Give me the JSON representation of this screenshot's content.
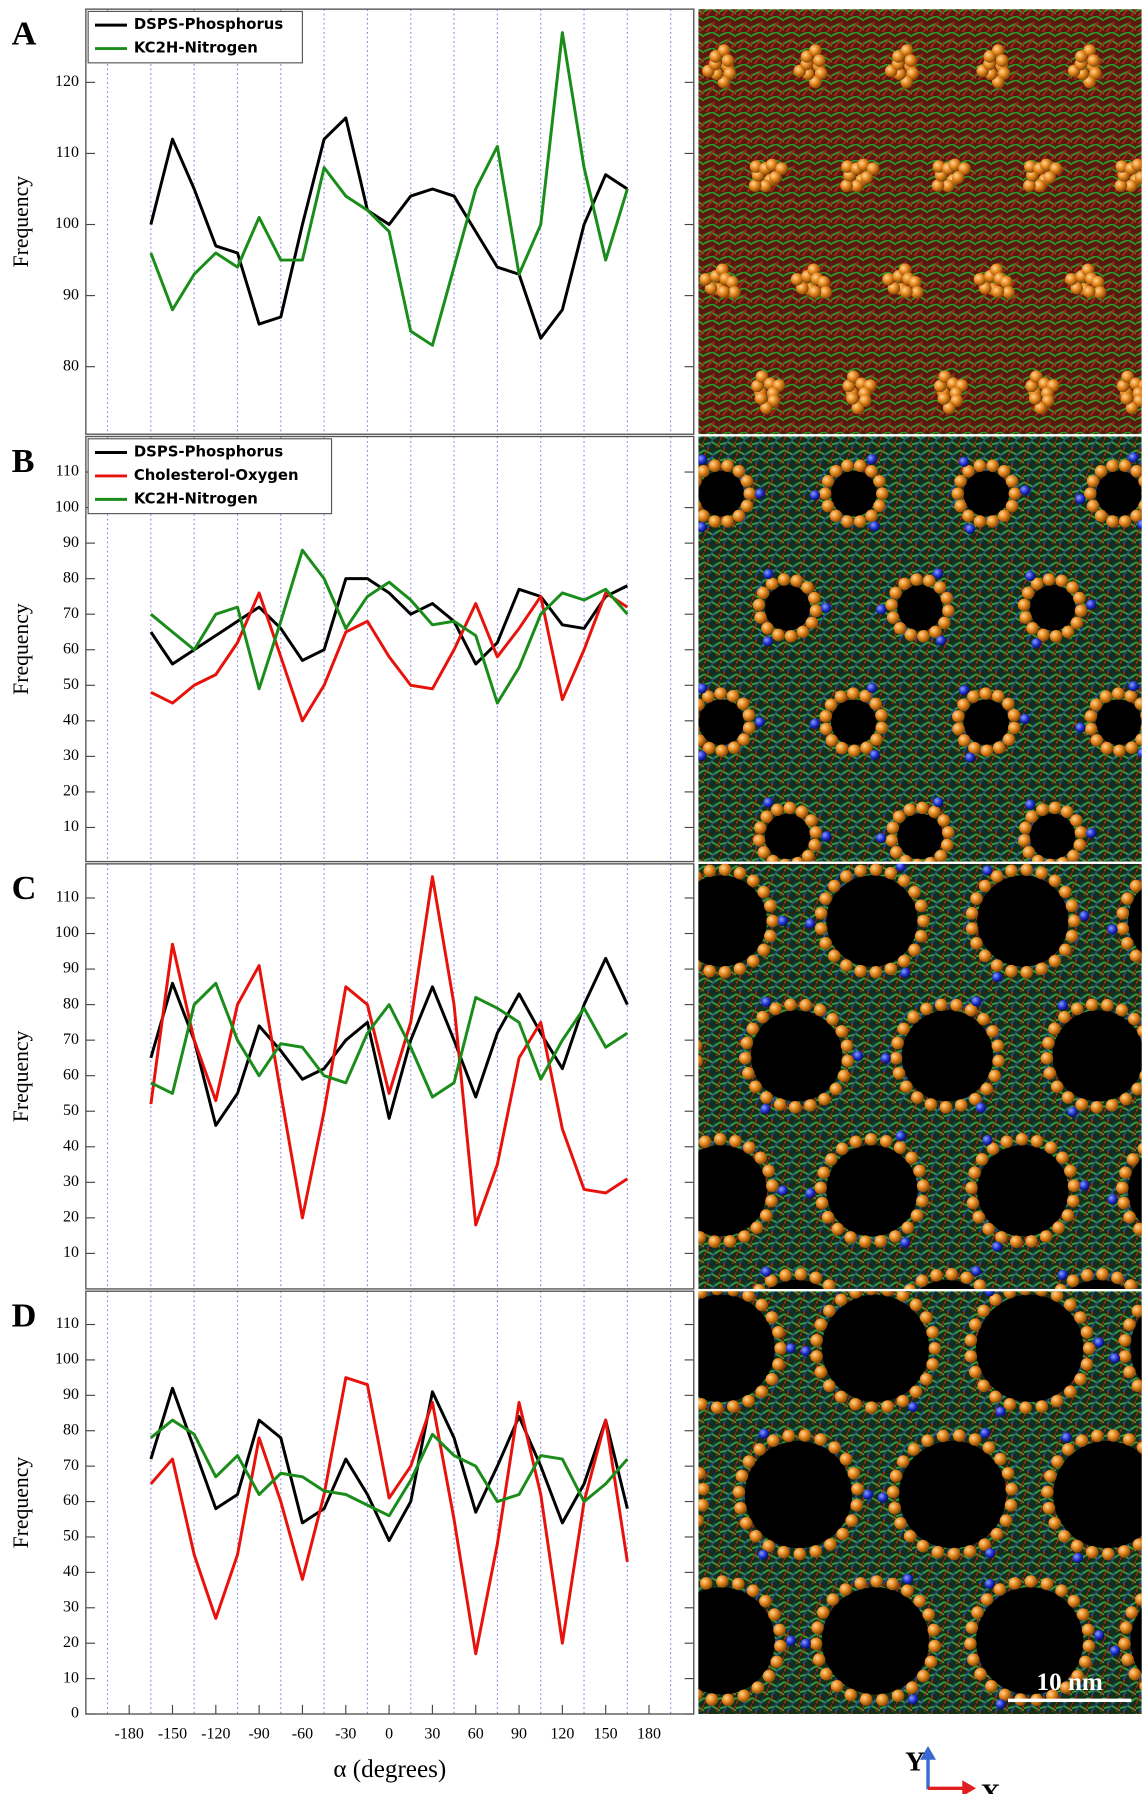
{
  "chart_data": [
    {
      "type": "line",
      "panel_label": "A",
      "ylabel": "Frequency",
      "legend": "upper left",
      "grid": true,
      "x": [
        -165,
        -150,
        -135,
        -120,
        -105,
        -90,
        -75,
        -60,
        -45,
        -30,
        -15,
        0,
        15,
        30,
        45,
        60,
        75,
        90,
        105,
        120,
        135,
        150,
        165
      ],
      "xlim": [
        -210,
        211
      ],
      "ylim": [
        70.5,
        130.3
      ],
      "yticks": [
        80,
        90,
        100,
        110,
        120
      ],
      "xgrid": [
        -195,
        -165,
        -135,
        -105,
        -75,
        -45,
        -15,
        15,
        45,
        75,
        105,
        135,
        165,
        195
      ],
      "series": [
        {
          "name": "DSPS-Phosphorus",
          "color": "#000000",
          "values": [
            100,
            112,
            105,
            97,
            96,
            86,
            87,
            100,
            112,
            115,
            102,
            100,
            104,
            105,
            104,
            99,
            94,
            93,
            84,
            88,
            100,
            107,
            105
          ]
        },
        {
          "name": "KC2H-Nitrogen",
          "color": "#1a8c1a",
          "values": [
            96,
            88,
            93,
            96,
            94,
            101,
            95,
            95,
            108,
            104,
            102,
            99,
            85,
            83,
            94,
            105,
            111,
            93,
            100,
            127,
            108,
            95,
            105
          ]
        }
      ]
    },
    {
      "type": "line",
      "panel_label": "B",
      "ylabel": "Frequency",
      "legend": "upper left",
      "grid": true,
      "x": [
        -165,
        -150,
        -135,
        -120,
        -105,
        -90,
        -75,
        -60,
        -45,
        -30,
        -15,
        0,
        15,
        30,
        45,
        60,
        75,
        90,
        105,
        120,
        135,
        150,
        165
      ],
      "xlim": [
        -210,
        211
      ],
      "ylim": [
        0.4,
        120
      ],
      "yticks": [
        10,
        20,
        30,
        40,
        50,
        60,
        70,
        80,
        90,
        100,
        110
      ],
      "xgrid": [
        -195,
        -165,
        -135,
        -105,
        -75,
        -45,
        -15,
        15,
        45,
        75,
        105,
        135,
        165,
        195
      ],
      "series": [
        {
          "name": "DSPS-Phosphorus",
          "color": "#000000",
          "values": [
            65,
            56,
            60,
            64,
            68,
            72,
            66,
            57,
            60,
            80,
            80,
            76,
            70,
            73,
            68,
            56,
            62,
            77,
            75,
            67,
            66,
            75,
            78
          ]
        },
        {
          "name": "Cholesterol-Oxygen",
          "color": "#e8120c",
          "values": [
            48,
            45,
            50,
            53,
            62,
            76,
            58,
            40,
            50,
            65,
            68,
            58,
            50,
            49,
            60,
            73,
            58,
            66,
            75,
            46,
            60,
            76,
            72
          ]
        },
        {
          "name": "KC2H-Nitrogen",
          "color": "#1a8c1a",
          "values": [
            70,
            65,
            60,
            70,
            72,
            49,
            68,
            88,
            80,
            66,
            75,
            79,
            74,
            67,
            68,
            64,
            45,
            55,
            70,
            76,
            74,
            77,
            70
          ]
        }
      ]
    },
    {
      "type": "line",
      "panel_label": "C",
      "ylabel": "Frequency",
      "grid": true,
      "x": [
        -165,
        -150,
        -135,
        -120,
        -105,
        -90,
        -75,
        -60,
        -45,
        -30,
        -15,
        0,
        15,
        30,
        45,
        60,
        75,
        90,
        105,
        120,
        135,
        150,
        165
      ],
      "xlim": [
        -210,
        211
      ],
      "ylim": [
        0,
        119.6
      ],
      "yticks": [
        10,
        20,
        30,
        40,
        50,
        60,
        70,
        80,
        90,
        100,
        110
      ],
      "xgrid": [
        -195,
        -165,
        -135,
        -105,
        -75,
        -45,
        -15,
        15,
        45,
        75,
        105,
        135,
        165,
        195
      ],
      "series": [
        {
          "color": "#000000",
          "values": [
            65,
            86,
            70,
            46,
            55,
            74,
            67,
            59,
            62,
            70,
            75,
            48,
            70,
            85,
            70,
            54,
            72,
            83,
            72,
            62,
            80,
            93,
            80
          ]
        },
        {
          "color": "#e8120c",
          "values": [
            52,
            97,
            70,
            53,
            80,
            91,
            55,
            20,
            50,
            85,
            80,
            55,
            75,
            116,
            80,
            18,
            35,
            65,
            75,
            45,
            28,
            27,
            31
          ]
        },
        {
          "color": "#1a8c1a",
          "values": [
            58,
            55,
            80,
            86,
            70,
            60,
            69,
            68,
            60,
            58,
            72,
            80,
            68,
            54,
            58,
            82,
            79,
            75,
            59,
            70,
            79,
            68,
            72
          ]
        }
      ]
    },
    {
      "type": "line",
      "panel_label": "D",
      "ylabel": "Frequency",
      "xlabel": "α (degrees)",
      "grid": true,
      "x": [
        -165,
        -150,
        -135,
        -120,
        -105,
        -90,
        -75,
        -60,
        -45,
        -30,
        -15,
        0,
        15,
        30,
        45,
        60,
        75,
        90,
        105,
        120,
        135,
        150,
        165
      ],
      "xlim": [
        -210,
        211
      ],
      "ylim": [
        0,
        119.4
      ],
      "yticks": [
        0,
        10,
        20,
        30,
        40,
        50,
        60,
        70,
        80,
        90,
        100,
        110
      ],
      "xticks": [
        -180,
        -150,
        -120,
        -90,
        -60,
        -30,
        0,
        30,
        60,
        90,
        120,
        150,
        180
      ],
      "xgrid": [
        -195,
        -165,
        -135,
        -105,
        -75,
        -45,
        -15,
        15,
        45,
        75,
        105,
        135,
        165,
        195
      ],
      "series": [
        {
          "color": "#000000",
          "values": [
            72,
            92,
            75,
            58,
            62,
            83,
            78,
            54,
            58,
            72,
            62,
            49,
            60,
            91,
            78,
            57,
            70,
            84,
            70,
            54,
            65,
            83,
            58
          ]
        },
        {
          "color": "#e8120c",
          "values": [
            65,
            72,
            45,
            27,
            45,
            78,
            60,
            38,
            62,
            95,
            93,
            61,
            70,
            88,
            55,
            17,
            48,
            88,
            62,
            20,
            60,
            83,
            43
          ]
        },
        {
          "color": "#1a8c1a",
          "values": [
            78,
            83,
            79,
            67,
            73,
            62,
            68,
            67,
            63,
            62,
            59,
            56,
            66,
            79,
            73,
            70,
            60,
            62,
            73,
            72,
            60,
            65,
            72
          ]
        }
      ]
    }
  ],
  "scale_bar": "10 nm",
  "axes_labels": {
    "y": "Y",
    "x": "X"
  }
}
